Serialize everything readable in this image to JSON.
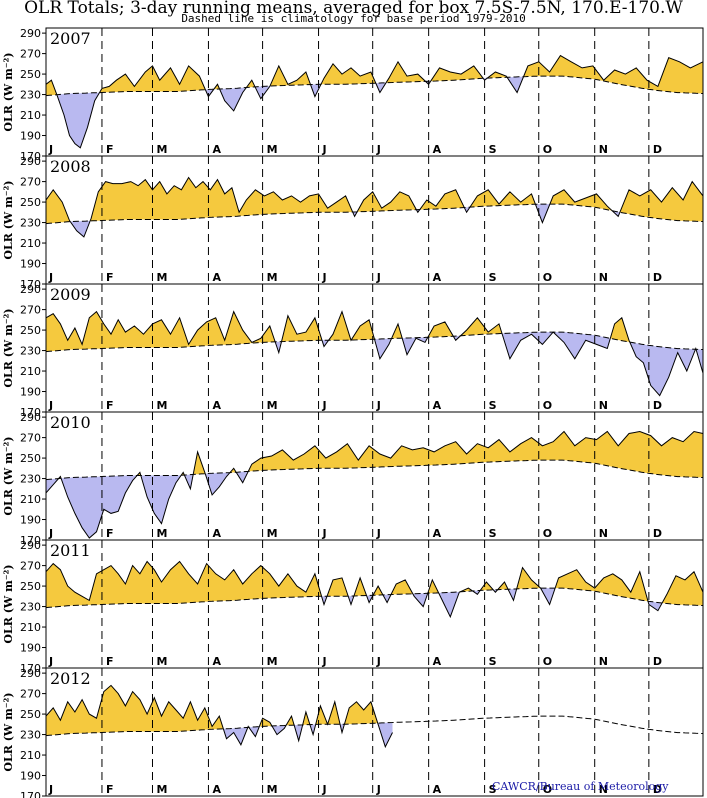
{
  "header": {
    "title": "OLR Totals; 3-day running means, averaged for box 7.5S-7.5N, 170.E-170.W",
    "subtitle": "Dashed line is climatology for base period 1979-2010"
  },
  "credit": "CAWCR/Bureau of Meteorology",
  "colors": {
    "above": "#f5c93e",
    "below": "#b9b9f0",
    "line": "#000000",
    "credit": "#1a1aa6"
  },
  "chart_data": {
    "type": "area",
    "xlabel": "",
    "ylabel": "OLR (W m⁻²)",
    "ylim": [
      170,
      295
    ],
    "yticks": [
      170,
      190,
      210,
      230,
      250,
      270,
      290
    ],
    "months": [
      "J",
      "F",
      "M",
      "A",
      "M",
      "J",
      "J",
      "A",
      "S",
      "O",
      "N",
      "D"
    ],
    "climatology": {
      "name": "climatology 1979-2010",
      "x": [
        1,
        15,
        32,
        46,
        60,
        74,
        91,
        105,
        121,
        135,
        152,
        166,
        182,
        196,
        213,
        227,
        244,
        258,
        274,
        288,
        305,
        319,
        335,
        350,
        365
      ],
      "y": [
        229,
        231,
        232,
        233,
        233,
        233,
        235,
        236,
        238,
        239,
        240,
        240,
        241,
        242,
        243,
        244,
        246,
        247,
        248,
        248,
        245,
        240,
        235,
        232,
        231
      ]
    },
    "years": [
      {
        "year": "2007",
        "x": [
          1,
          4,
          7,
          11,
          14,
          17,
          20,
          24,
          28,
          32,
          36,
          40,
          45,
          50,
          56,
          60,
          64,
          70,
          75,
          80,
          86,
          91,
          96,
          100,
          105,
          110,
          115,
          120,
          125,
          130,
          135,
          140,
          145,
          150,
          155,
          160,
          165,
          170,
          175,
          181,
          186,
          191,
          196,
          201,
          207,
          213,
          219,
          225,
          231,
          238,
          244,
          250,
          256,
          262,
          268,
          274,
          280,
          286,
          292,
          298,
          304,
          310,
          316,
          322,
          328,
          334,
          340,
          346,
          352,
          358,
          365
        ],
        "y": [
          240,
          244,
          230,
          210,
          190,
          182,
          178,
          198,
          224,
          236,
          238,
          244,
          250,
          238,
          252,
          258,
          244,
          256,
          240,
          258,
          248,
          228,
          240,
          224,
          214,
          232,
          244,
          226,
          238,
          258,
          240,
          244,
          252,
          228,
          246,
          260,
          250,
          256,
          248,
          252,
          232,
          246,
          262,
          248,
          250,
          240,
          256,
          252,
          250,
          258,
          244,
          252,
          248,
          232,
          258,
          262,
          252,
          268,
          262,
          256,
          258,
          244,
          254,
          250,
          256,
          244,
          238,
          266,
          262,
          256,
          262
        ]
      },
      {
        "year": "2008",
        "x": [
          1,
          5,
          10,
          14,
          18,
          22,
          26,
          30,
          34,
          38,
          43,
          48,
          52,
          56,
          60,
          64,
          68,
          72,
          76,
          80,
          84,
          88,
          92,
          96,
          100,
          104,
          108,
          112,
          117,
          122,
          127,
          132,
          137,
          142,
          147,
          152,
          157,
          162,
          167,
          172,
          177,
          182,
          187,
          192,
          197,
          202,
          207,
          212,
          217,
          222,
          228,
          234,
          240,
          246,
          252,
          258,
          264,
          270,
          276,
          282,
          288,
          294,
          300,
          306,
          312,
          318,
          324,
          330,
          336,
          342,
          348,
          354,
          359,
          365
        ],
        "y": [
          252,
          262,
          250,
          232,
          222,
          216,
          234,
          260,
          270,
          268,
          268,
          270,
          266,
          272,
          262,
          270,
          258,
          266,
          262,
          274,
          264,
          270,
          262,
          272,
          258,
          264,
          240,
          252,
          262,
          256,
          260,
          252,
          256,
          250,
          256,
          258,
          244,
          250,
          256,
          236,
          252,
          260,
          244,
          250,
          260,
          256,
          240,
          252,
          246,
          258,
          262,
          240,
          256,
          262,
          248,
          260,
          250,
          258,
          230,
          256,
          262,
          250,
          254,
          258,
          246,
          236,
          262,
          256,
          262,
          250,
          264,
          252,
          270,
          256
        ]
      },
      {
        "year": "2009",
        "x": [
          1,
          5,
          9,
          13,
          17,
          21,
          25,
          29,
          33,
          37,
          41,
          45,
          50,
          55,
          60,
          65,
          70,
          75,
          80,
          85,
          90,
          95,
          100,
          105,
          110,
          115,
          120,
          125,
          130,
          135,
          140,
          145,
          150,
          155,
          160,
          165,
          170,
          175,
          180,
          186,
          191,
          196,
          201,
          206,
          211,
          216,
          222,
          228,
          234,
          240,
          246,
          252,
          258,
          264,
          270,
          276,
          282,
          288,
          294,
          300,
          306,
          312,
          316,
          320,
          324,
          328,
          332,
          336,
          341,
          346,
          351,
          356,
          361,
          365
        ],
        "y": [
          262,
          266,
          256,
          240,
          252,
          236,
          262,
          268,
          256,
          246,
          260,
          248,
          254,
          246,
          256,
          260,
          246,
          262,
          236,
          250,
          258,
          262,
          240,
          268,
          250,
          238,
          242,
          254,
          228,
          264,
          246,
          248,
          262,
          234,
          246,
          268,
          240,
          254,
          260,
          222,
          236,
          256,
          226,
          242,
          238,
          254,
          258,
          240,
          250,
          262,
          248,
          256,
          222,
          240,
          246,
          236,
          248,
          238,
          222,
          240,
          236,
          232,
          256,
          262,
          240,
          224,
          218,
          196,
          186,
          204,
          228,
          210,
          232,
          208
        ]
      },
      {
        "year": "2010",
        "x": [
          1,
          5,
          9,
          13,
          17,
          21,
          25,
          29,
          33,
          37,
          41,
          45,
          49,
          53,
          57,
          61,
          65,
          69,
          73,
          77,
          81,
          85,
          89,
          93,
          97,
          101,
          105,
          110,
          115,
          120,
          126,
          132,
          138,
          144,
          150,
          156,
          162,
          168,
          174,
          180,
          186,
          192,
          198,
          204,
          210,
          216,
          222,
          228,
          234,
          240,
          246,
          252,
          258,
          264,
          270,
          276,
          282,
          288,
          294,
          300,
          306,
          312,
          318,
          324,
          330,
          336,
          342,
          348,
          354,
          360,
          365
        ],
        "y": [
          216,
          224,
          232,
          212,
          196,
          182,
          172,
          178,
          200,
          196,
          198,
          216,
          228,
          236,
          212,
          196,
          186,
          210,
          226,
          236,
          220,
          256,
          236,
          214,
          222,
          232,
          240,
          226,
          244,
          250,
          252,
          258,
          248,
          254,
          262,
          250,
          256,
          264,
          248,
          262,
          254,
          250,
          262,
          258,
          260,
          256,
          262,
          266,
          254,
          264,
          260,
          268,
          256,
          264,
          270,
          262,
          266,
          276,
          262,
          270,
          268,
          276,
          262,
          274,
          276,
          272,
          262,
          270,
          266,
          276,
          274
        ]
      },
      {
        "year": "2011",
        "x": [
          1,
          5,
          9,
          13,
          17,
          21,
          25,
          29,
          33,
          37,
          41,
          45,
          49,
          53,
          57,
          61,
          65,
          70,
          75,
          80,
          85,
          90,
          95,
          100,
          105,
          110,
          115,
          120,
          125,
          130,
          135,
          140,
          145,
          150,
          155,
          160,
          165,
          170,
          175,
          180,
          185,
          190,
          195,
          200,
          205,
          210,
          215,
          220,
          225,
          230,
          235,
          240,
          245,
          250,
          255,
          260,
          265,
          270,
          275,
          280,
          285,
          290,
          295,
          300,
          305,
          310,
          315,
          320,
          325,
          330,
          335,
          340,
          345,
          350,
          355,
          360,
          365
        ],
        "y": [
          264,
          272,
          266,
          250,
          244,
          240,
          236,
          262,
          266,
          270,
          262,
          252,
          270,
          262,
          274,
          266,
          254,
          266,
          274,
          262,
          252,
          272,
          262,
          256,
          266,
          252,
          262,
          270,
          262,
          250,
          262,
          250,
          244,
          262,
          232,
          256,
          258,
          232,
          258,
          234,
          250,
          234,
          252,
          256,
          240,
          230,
          256,
          238,
          220,
          244,
          248,
          242,
          254,
          244,
          254,
          236,
          268,
          256,
          248,
          232,
          258,
          262,
          266,
          254,
          248,
          258,
          262,
          256,
          244,
          264,
          232,
          226,
          242,
          260,
          256,
          264,
          244
        ]
      },
      {
        "year": "2012",
        "x": [
          1,
          5,
          9,
          13,
          17,
          21,
          25,
          29,
          33,
          37,
          41,
          45,
          49,
          53,
          57,
          61,
          65,
          69,
          73,
          77,
          81,
          85,
          89,
          93,
          97,
          101,
          105,
          109,
          113,
          117,
          121,
          125,
          129,
          133,
          137,
          141,
          145,
          149,
          153,
          157,
          161,
          165,
          169,
          173,
          177,
          181,
          185,
          189,
          193
        ],
        "y": [
          248,
          256,
          244,
          262,
          252,
          264,
          250,
          246,
          272,
          278,
          270,
          258,
          272,
          264,
          250,
          266,
          248,
          262,
          254,
          246,
          262,
          244,
          256,
          238,
          248,
          226,
          232,
          220,
          238,
          228,
          246,
          242,
          230,
          236,
          248,
          224,
          252,
          230,
          258,
          240,
          262,
          232,
          256,
          262,
          254,
          262,
          240,
          218,
          232
        ]
      }
    ]
  }
}
